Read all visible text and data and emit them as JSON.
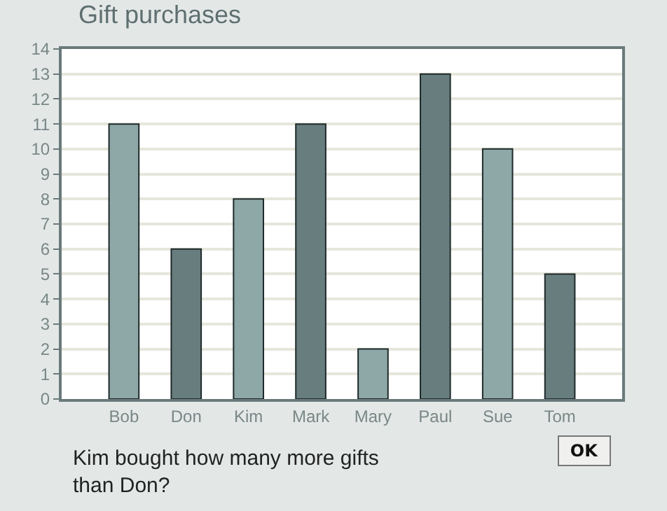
{
  "chart_data": {
    "type": "bar",
    "title": "Gift purchases",
    "categories": [
      "Bob",
      "Don",
      "Kim",
      "Mark",
      "Mary",
      "Paul",
      "Sue",
      "Tom"
    ],
    "values": [
      11,
      6,
      8,
      11,
      2,
      13,
      10,
      5
    ],
    "colors": [
      "#8ea7a7",
      "#687d7e",
      "#8ea7a7",
      "#687d7e",
      "#8ea7a7",
      "#687d7e",
      "#8ea7a7",
      "#687d7e"
    ],
    "ylim": [
      0,
      14
    ],
    "yticks": [
      0,
      1,
      2,
      3,
      4,
      5,
      6,
      7,
      8,
      9,
      10,
      11,
      12,
      13,
      14
    ],
    "grid": "y",
    "annotations": [
      "Kim bought how many more gifts\nthan Don?",
      "OK"
    ]
  }
}
